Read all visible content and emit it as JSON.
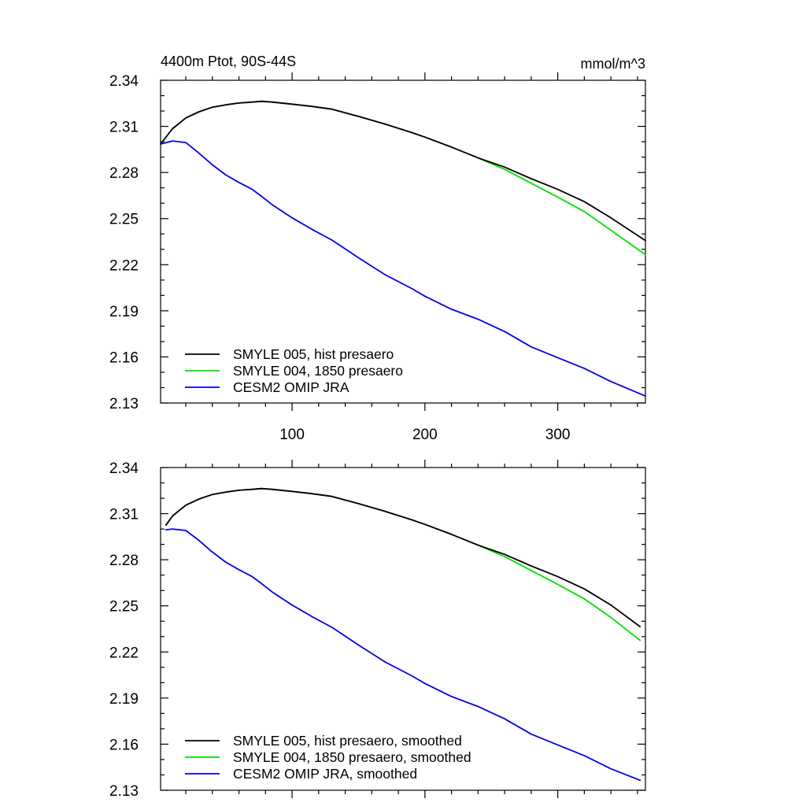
{
  "chart_data": [
    {
      "type": "line",
      "panel": "top",
      "title_left": "4400m Ptot, 90S-44S",
      "title_right": "mmol/m^3",
      "xlabel": "",
      "ylabel": "",
      "xlim": [
        1,
        366
      ],
      "ylim": [
        2.13,
        2.34
      ],
      "yticks": [
        "2.34",
        "2.31",
        "2.28",
        "2.25",
        "2.22",
        "2.19",
        "2.16",
        "2.13"
      ],
      "xticks": [
        "100",
        "200",
        "300"
      ],
      "grid": false,
      "legend_position": "bottom-left",
      "x": [
        1,
        10,
        20,
        30,
        40,
        50,
        60,
        70,
        77,
        85,
        100,
        115,
        130,
        150,
        170,
        190,
        200,
        220,
        240,
        260,
        280,
        300,
        320,
        340,
        366
      ],
      "series": [
        {
          "name": "SMYLE 005, hist presaero",
          "color": "#000000",
          "values": [
            2.2985,
            2.3085,
            2.3155,
            2.3195,
            2.3225,
            2.324,
            2.3252,
            2.3258,
            2.3263,
            2.3258,
            2.3245,
            2.323,
            2.3212,
            2.3165,
            2.3115,
            2.306,
            2.303,
            2.2965,
            2.2895,
            2.2835,
            2.276,
            2.269,
            2.261,
            2.2505,
            2.2357
          ]
        },
        {
          "name": "SMYLE 004, 1850 presaero",
          "color": "#00e000",
          "values": [
            2.2985,
            2.3085,
            2.3155,
            2.3195,
            2.3225,
            2.324,
            2.3252,
            2.3258,
            2.3263,
            2.3258,
            2.3245,
            2.323,
            2.3212,
            2.3165,
            2.3115,
            2.306,
            2.303,
            2.2965,
            2.2895,
            2.282,
            2.273,
            2.264,
            2.2545,
            2.2425,
            2.2265
          ]
        },
        {
          "name": "CESM2 OMIP JRA",
          "color": "#0000ee",
          "values": [
            2.2985,
            2.3005,
            2.2995,
            2.2925,
            2.285,
            2.2785,
            2.2735,
            2.269,
            2.2645,
            2.259,
            2.2505,
            2.243,
            2.236,
            2.2245,
            2.2135,
            2.2045,
            2.1995,
            2.191,
            2.1845,
            2.1765,
            2.1665,
            2.1595,
            2.1525,
            2.144,
            2.1345
          ]
        }
      ]
    },
    {
      "type": "line",
      "panel": "bottom",
      "xlabel": "",
      "ylabel": "",
      "xlim": [
        1,
        366
      ],
      "ylim": [
        2.13,
        2.34
      ],
      "yticks": [
        "2.34",
        "2.31",
        "2.28",
        "2.25",
        "2.22",
        "2.19",
        "2.16",
        "2.13"
      ],
      "grid": false,
      "legend_position": "bottom-left",
      "x": [
        5,
        10,
        20,
        30,
        40,
        50,
        60,
        70,
        77,
        85,
        100,
        115,
        130,
        150,
        170,
        190,
        200,
        220,
        240,
        260,
        280,
        300,
        320,
        340,
        362
      ],
      "series": [
        {
          "name": "SMYLE 005, hist presaero, smoothed",
          "color": "#000000",
          "values": [
            2.3025,
            2.3085,
            2.3155,
            2.3195,
            2.3225,
            2.324,
            2.3252,
            2.3258,
            2.3263,
            2.3258,
            2.3245,
            2.323,
            2.3212,
            2.3165,
            2.3115,
            2.306,
            2.303,
            2.2965,
            2.2895,
            2.2835,
            2.276,
            2.269,
            2.261,
            2.2505,
            2.2365
          ]
        },
        {
          "name": "SMYLE 004, 1850 presaero, smoothed",
          "color": "#00e000",
          "values": [
            2.3025,
            2.3085,
            2.3155,
            2.3195,
            2.3225,
            2.324,
            2.3252,
            2.3258,
            2.3263,
            2.3258,
            2.3245,
            2.323,
            2.3212,
            2.3165,
            2.3115,
            2.306,
            2.303,
            2.2965,
            2.2895,
            2.282,
            2.273,
            2.264,
            2.2545,
            2.2425,
            2.2275
          ]
        },
        {
          "name": "CESM2 OMIP JRA, smoothed",
          "color": "#0000ee",
          "values": [
            2.2995,
            2.3,
            2.299,
            2.2925,
            2.285,
            2.2785,
            2.2735,
            2.269,
            2.2645,
            2.259,
            2.2505,
            2.243,
            2.236,
            2.2245,
            2.2135,
            2.2045,
            2.1995,
            2.191,
            2.1845,
            2.1765,
            2.1665,
            2.1595,
            2.1525,
            2.144,
            2.1365
          ]
        }
      ]
    }
  ]
}
